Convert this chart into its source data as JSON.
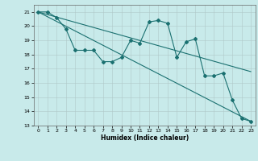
{
  "title": "",
  "xlabel": "Humidex (Indice chaleur)",
  "bg_color": "#c8eaea",
  "grid_color": "#b0c8c8",
  "line_color": "#1a7070",
  "x_data": [
    0,
    1,
    2,
    3,
    4,
    5,
    6,
    7,
    8,
    9,
    10,
    11,
    12,
    13,
    14,
    15,
    16,
    17,
    18,
    19,
    20,
    21,
    22,
    23
  ],
  "y_main": [
    21,
    21,
    20.6,
    19.8,
    18.3,
    18.3,
    18.3,
    17.5,
    17.5,
    17.8,
    19.0,
    18.8,
    20.3,
    20.4,
    20.2,
    17.8,
    18.9,
    19.1,
    16.5,
    16.5,
    16.7,
    14.8,
    13.5,
    13.3
  ],
  "trend1_x": [
    0,
    23
  ],
  "trend1_y": [
    21.0,
    16.8
  ],
  "trend2_x": [
    0,
    23
  ],
  "trend2_y": [
    21.0,
    13.3
  ],
  "ylim": [
    13,
    21.5
  ],
  "xlim": [
    -0.5,
    23.5
  ],
  "yticks": [
    13,
    14,
    15,
    16,
    17,
    18,
    19,
    20,
    21
  ],
  "xticks": [
    0,
    1,
    2,
    3,
    4,
    5,
    6,
    7,
    8,
    9,
    10,
    11,
    12,
    13,
    14,
    15,
    16,
    17,
    18,
    19,
    20,
    21,
    22,
    23
  ]
}
